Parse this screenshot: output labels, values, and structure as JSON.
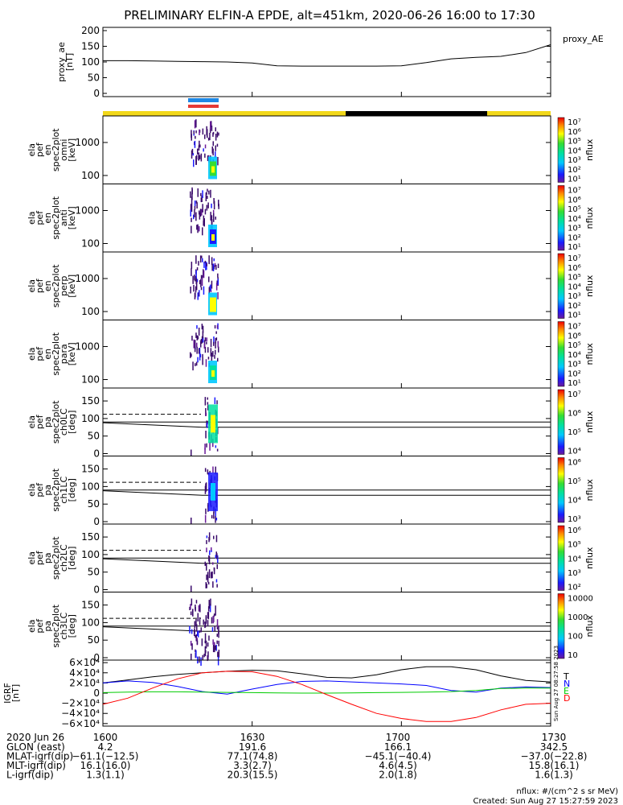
{
  "title": "PRELIMINARY ELFIN-A EPDE, alt=451km, 2020-06-26 16:00 to 17:30",
  "proxy_ae": {
    "ylabel": [
      "proxy_ae",
      "[nT]"
    ],
    "side_label": "proxy_AE",
    "yticks": [
      "200",
      "150",
      "100",
      "50",
      "0"
    ],
    "ytick_values": [
      200,
      150,
      100,
      50,
      0
    ],
    "ylim": [
      0,
      200
    ]
  },
  "energy_panels": [
    {
      "ylabel": [
        "ela",
        "pef",
        "en",
        "spec2plot",
        "omni",
        "[keV]"
      ],
      "yticks": [
        "1000",
        "100"
      ]
    },
    {
      "ylabel": [
        "ela",
        "pef",
        "en",
        "spec2plot",
        "anti",
        "[keV]"
      ],
      "yticks": [
        "1000",
        "100"
      ]
    },
    {
      "ylabel": [
        "ela",
        "pef",
        "en",
        "spec2plot",
        "perp",
        "[keV]"
      ],
      "yticks": [
        "1000",
        "100"
      ]
    },
    {
      "ylabel": [
        "ela",
        "pef",
        "en",
        "spec2plot",
        "para",
        "[keV]"
      ],
      "yticks": [
        "1000",
        "100"
      ]
    }
  ],
  "pa_panels": [
    {
      "ylabel": [
        "ela",
        "pef",
        "pa",
        "spec2plot",
        "ch0LC",
        "[deg]"
      ],
      "yticks": [
        "150",
        "100",
        "50",
        "0"
      ]
    },
    {
      "ylabel": [
        "ela",
        "pef",
        "pa",
        "spec2plot",
        "ch1LC",
        "[deg]"
      ],
      "yticks": [
        "150",
        "100",
        "50",
        "0"
      ]
    },
    {
      "ylabel": [
        "ela",
        "pef",
        "pa",
        "spec2plot",
        "ch2LC",
        "[deg]"
      ],
      "yticks": [
        "150",
        "100",
        "50",
        "0"
      ]
    },
    {
      "ylabel": [
        "ela",
        "pef",
        "pa",
        "spec2plot",
        "ch3LC",
        "[deg]"
      ],
      "yticks": [
        "150",
        "100",
        "50",
        "0"
      ]
    }
  ],
  "colorbars": [
    {
      "label": "nflux",
      "ticks": [
        "10⁷",
        "10⁶",
        "10⁵",
        "10⁴",
        "10³",
        "10²",
        "10¹"
      ]
    },
    {
      "label": "nflux",
      "ticks": [
        "10⁷",
        "10⁶",
        "10⁵",
        "10⁴",
        "10³",
        "10²",
        "10¹"
      ]
    },
    {
      "label": "nflux",
      "ticks": [
        "10⁷",
        "10⁶",
        "10⁵",
        "10⁴",
        "10³",
        "10²",
        "10¹"
      ]
    },
    {
      "label": "nflux",
      "ticks": [
        "10⁷",
        "10⁶",
        "10⁵",
        "10⁴",
        "10³",
        "10²",
        "10¹"
      ]
    },
    {
      "label": "nflux",
      "ticks": [
        "10⁷",
        "10⁶",
        "10⁵",
        "10⁴"
      ]
    },
    {
      "label": "nflux",
      "ticks": [
        "10⁶",
        "10⁵",
        "10⁴",
        "10³"
      ]
    },
    {
      "label": "nflux",
      "ticks": [
        "10⁶",
        "10⁵",
        "10⁴",
        "10³",
        "10²"
      ]
    },
    {
      "label": "nflux",
      "ticks": [
        "10000",
        "1000",
        "100",
        "10"
      ]
    }
  ],
  "igrf": {
    "ylabel": [
      "IGRF",
      "[nT]"
    ],
    "yticks": [
      "6×10⁴",
      "4×10⁴",
      "2×10⁴",
      "0",
      "−2×10⁴",
      "−4×10⁴",
      "−6×10⁴"
    ],
    "ytick_values": [
      60000,
      40000,
      20000,
      0,
      -20000,
      -40000,
      -60000
    ],
    "ylim": [
      -65000,
      65000
    ],
    "legend": [
      "T",
      "N",
      "E",
      "D"
    ],
    "colors": {
      "T": "#000000",
      "N": "#0000ff",
      "E": "#00cc00",
      "D": "#ff0000"
    },
    "stamp": "Sun Aug 27 08:27:58 2023"
  },
  "chart_data": [
    {
      "type": "line",
      "title": "PRELIMINARY ELFIN-A EPDE, alt=451km, 2020-06-26 16:00 to 17:30",
      "ylabel": "proxy_ae [nT]",
      "ylim": [
        0,
        200
      ],
      "x": [
        0,
        5,
        10,
        15,
        20,
        25,
        30,
        35,
        40,
        45,
        50,
        55,
        60,
        65,
        70,
        75,
        80,
        85,
        90
      ],
      "series": [
        {
          "name": "proxy_AE",
          "values": [
            104,
            104,
            103,
            102,
            101,
            100,
            97,
            88,
            87,
            87,
            87,
            87,
            88,
            98,
            110,
            115,
            118,
            130,
            155
          ]
        }
      ]
    },
    {
      "type": "heatmap",
      "ylabel": "ela pef en spec2plot omni/anti/perp/para [keV]",
      "colorbar_label": "nflux",
      "colorbar_range": [
        10,
        10000000
      ],
      "active_interval_minutes": [
        18,
        24
      ]
    },
    {
      "type": "heatmap",
      "ylabel": "ela pef pa spec2plot ch0LC..ch3LC [deg]",
      "ylim": [
        0,
        180
      ],
      "colorbar_label": "nflux"
    },
    {
      "type": "line",
      "ylabel": "IGRF [nT]",
      "ylim": [
        -65000,
        65000
      ],
      "x": [
        0,
        5,
        10,
        15,
        20,
        25,
        30,
        35,
        40,
        45,
        50,
        55,
        60,
        65,
        70,
        75,
        80,
        85,
        90
      ],
      "series": [
        {
          "name": "T",
          "values": [
            20000,
            26000,
            32000,
            37000,
            40000,
            43000,
            45000,
            44000,
            38000,
            31000,
            30000,
            36000,
            46000,
            52000,
            52000,
            46000,
            34000,
            25000,
            22000
          ]
        },
        {
          "name": "N",
          "values": [
            20000,
            24000,
            21000,
            13000,
            3000,
            -2000,
            8000,
            17000,
            23000,
            24000,
            22000,
            20000,
            18000,
            15000,
            5000,
            2000,
            10000,
            12000,
            11000
          ]
        },
        {
          "name": "E",
          "values": [
            1000,
            2000,
            2500,
            2500,
            2000,
            1500,
            1000,
            500,
            0,
            0,
            500,
            1000,
            1500,
            2000,
            3000,
            5000,
            9000,
            10000,
            10000
          ]
        },
        {
          "name": "D",
          "values": [
            -22000,
            -10000,
            10000,
            28000,
            40000,
            43000,
            42000,
            33000,
            17000,
            -3000,
            -22000,
            -40000,
            -50000,
            -56000,
            -56000,
            -48000,
            -33000,
            -22000,
            -20000
          ]
        }
      ]
    }
  ],
  "x_axis": {
    "date_label": "2020 Jun 26",
    "times": [
      "1600",
      "1630",
      "1700",
      "1730"
    ],
    "time_values": [
      0,
      30,
      60,
      90
    ]
  },
  "ephemeris": [
    {
      "label": "GLON (east)",
      "values": [
        "4.2",
        "191.6",
        "166.1",
        "342.5"
      ]
    },
    {
      "label": "MLAT-igrf(dip)",
      "values": [
        "−61.1(−12.5)",
        "77.1(74.8)",
        "−45.1(−40.4)",
        "−37.0(−22.8)"
      ]
    },
    {
      "label": "MLT-igrf(dip)",
      "values": [
        "16.1(16.0)",
        "3.3(2.7)",
        "4.6(4.5)",
        "15.8(16.1)"
      ]
    },
    {
      "label": "L-igrf(dip)",
      "values": [
        "1.3(1.1)",
        "20.3(15.5)",
        "2.0(1.8)",
        "1.6(1.3)"
      ]
    }
  ],
  "footer": {
    "units": "nflux: #/(cm^2 s sr MeV)",
    "created": "Created: Sun Aug 27 15:27:59 2023"
  }
}
